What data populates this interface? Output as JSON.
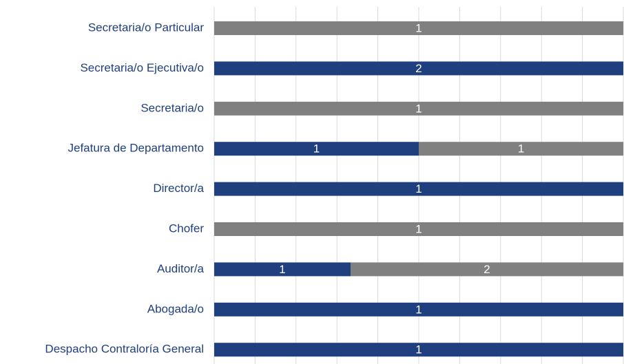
{
  "chart_data": {
    "type": "bar",
    "orientation": "horizontal",
    "stacking": "percent",
    "categories": [
      "Secretaria/o Particular",
      "Secretaria/o Ejecutiva/o",
      "Secretaria/o",
      "Jefatura de Departamento",
      "Director/a",
      "Chofer",
      "Auditor/a",
      "Abogada/o",
      "Despacho Contraloría General"
    ],
    "series": [
      {
        "color": "#1f3f7f",
        "values": [
          0,
          2,
          0,
          1,
          1,
          0,
          1,
          1,
          1
        ]
      },
      {
        "color": "#808080",
        "values": [
          1,
          0,
          1,
          1,
          0,
          1,
          2,
          0,
          0
        ]
      }
    ],
    "xlim": [
      0,
      100
    ],
    "xticks": [
      0,
      10,
      20,
      30,
      40,
      50,
      60,
      70,
      80,
      90,
      100
    ],
    "grid": true
  }
}
